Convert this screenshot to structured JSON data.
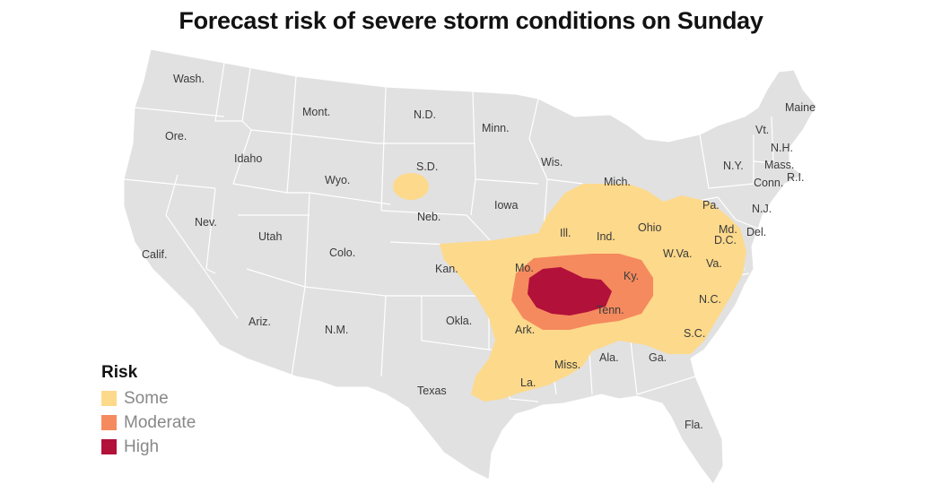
{
  "title": "Forecast risk of severe storm conditions on Sunday",
  "legend": {
    "title": "Risk",
    "items": [
      {
        "label": "Some",
        "color": "#fdd98b"
      },
      {
        "label": "Moderate",
        "color": "#f58a5e"
      },
      {
        "label": "High",
        "color": "#b2113a"
      }
    ]
  },
  "colors": {
    "land": "#e1e1e1",
    "border": "#ffffff"
  },
  "states": {
    "wash": "Wash.",
    "ore": "Ore.",
    "calif": "Calif.",
    "idaho": "Idaho",
    "nev": "Nev.",
    "mont": "Mont.",
    "wyo": "Wyo.",
    "utah": "Utah",
    "ariz": "Ariz.",
    "colo": "Colo.",
    "nm": "N.M.",
    "nd": "N.D.",
    "sd": "S.D.",
    "neb": "Neb.",
    "kan": "Kan.",
    "okla": "Okla.",
    "texas": "Texas",
    "minn": "Minn.",
    "iowa": "Iowa",
    "mo": "Mo.",
    "ark": "Ark.",
    "la": "La.",
    "wis": "Wis.",
    "ill": "Ill.",
    "mich": "Mich.",
    "ind": "Ind.",
    "ohio": "Ohio",
    "ky": "Ky.",
    "tenn": "Tenn.",
    "miss": "Miss.",
    "ala": "Ala.",
    "ga": "Ga.",
    "fla": "Fla.",
    "sc": "S.C.",
    "nc": "N.C.",
    "va": "Va.",
    "wva": "W.Va.",
    "pa": "Pa.",
    "ny": "N.Y.",
    "md": "Md.",
    "dc": "D.C.",
    "del": "Del.",
    "nj": "N.J.",
    "conn": "Conn.",
    "ri": "R.I.",
    "mass": "Mass.",
    "vt": "Vt.",
    "nh": "N.H.",
    "maine": "Maine"
  }
}
